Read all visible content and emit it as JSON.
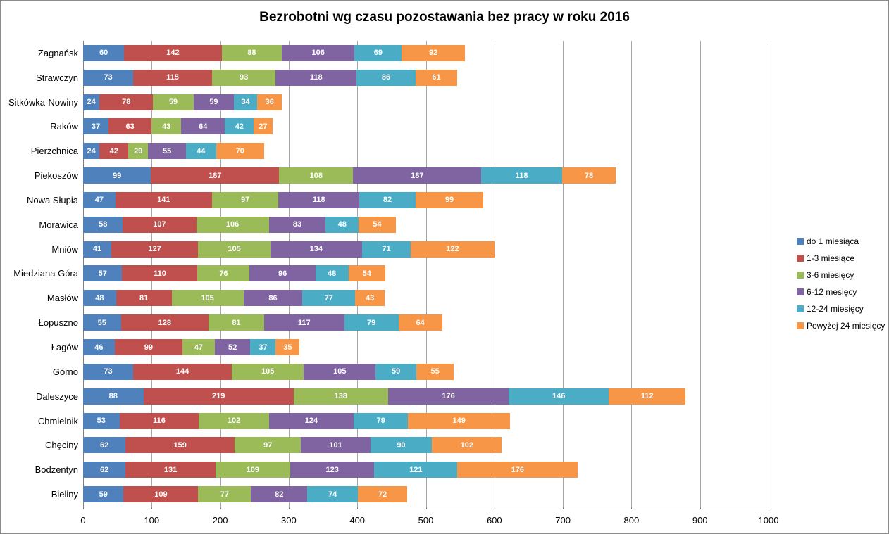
{
  "chart_data": {
    "type": "bar",
    "variant": "horizontal-stacked",
    "title": "Bezrobotni wg czasu pozostawania bez pracy w roku 2016",
    "categories": [
      "Zagnańsk",
      "Strawczyn",
      "Sitkówka-Nowiny",
      "Raków",
      "Pierzchnica",
      "Piekoszów",
      "Nowa Słupia",
      "Morawica",
      "Mniów",
      "Miedziana Góra",
      "Masłów",
      "Łopuszno",
      "Łagów",
      "Górno",
      "Daleszyce",
      "Chmielnik",
      "Chęciny",
      "Bodzentyn",
      "Bieliny"
    ],
    "series": [
      {
        "name": "do 1 miesiąca",
        "color": "#4F81BD",
        "values": [
          60,
          73,
          24,
          37,
          24,
          99,
          47,
          58,
          41,
          57,
          48,
          55,
          46,
          73,
          88,
          53,
          62,
          62,
          59
        ]
      },
      {
        "name": "1-3 miesiące",
        "color": "#C0504D",
        "values": [
          142,
          115,
          78,
          63,
          42,
          187,
          141,
          107,
          127,
          110,
          81,
          128,
          99,
          144,
          219,
          116,
          159,
          131,
          109
        ]
      },
      {
        "name": "3-6 miesięcy",
        "color": "#9BBB59",
        "values": [
          88,
          93,
          59,
          43,
          29,
          108,
          97,
          106,
          105,
          76,
          105,
          81,
          47,
          105,
          138,
          102,
          97,
          109,
          77
        ]
      },
      {
        "name": "6-12 mesięcy",
        "color": "#8064A2",
        "values": [
          106,
          118,
          59,
          64,
          55,
          187,
          118,
          83,
          134,
          96,
          86,
          117,
          52,
          105,
          176,
          124,
          101,
          123,
          82
        ]
      },
      {
        "name": "12-24 miesięcy",
        "color": "#4BACC6",
        "values": [
          69,
          86,
          34,
          42,
          44,
          118,
          82,
          48,
          71,
          48,
          77,
          79,
          37,
          59,
          146,
          79,
          90,
          121,
          74
        ]
      },
      {
        "name": "Powyżej 24 miesięcy",
        "color": "#F79646",
        "values": [
          92,
          61,
          36,
          27,
          70,
          78,
          99,
          54,
          122,
          54,
          43,
          64,
          35,
          55,
          112,
          149,
          102,
          176,
          72
        ]
      }
    ],
    "xlim": [
      0,
      1000
    ],
    "x_tick_step": 100,
    "x_ticks": [
      "0",
      "100",
      "200",
      "300",
      "400",
      "500",
      "600",
      "700",
      "800",
      "900",
      "1000"
    ],
    "grid": "vertical",
    "legend_position": "right",
    "bar_label_color": "#FFFFFF"
  },
  "colors": {
    "gridline": "#A6A6A6",
    "axis": "#808080",
    "frame_border": "#8C8C8C",
    "background": "#FFFFFF",
    "text": "#000000"
  }
}
